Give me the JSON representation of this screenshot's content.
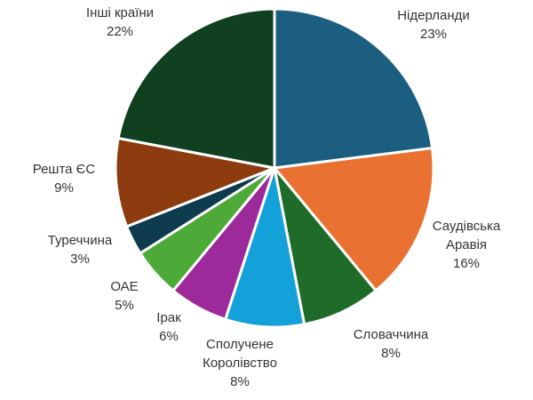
{
  "chart_data": {
    "type": "pie",
    "title": "",
    "categories": [
      "Нідерланди",
      "Саудівська Аравія",
      "Словаччина",
      "Сполучене Королівство",
      "Ірак",
      "ОАЕ",
      "Туреччина",
      "Решта ЄС",
      "Інші країни"
    ],
    "values": [
      23,
      16,
      8,
      8,
      6,
      5,
      3,
      9,
      22
    ],
    "value_labels": [
      "23%",
      "16%",
      "8%",
      "8%",
      "6%",
      "5%",
      "3%",
      "9%",
      "22%"
    ],
    "colors": [
      "#1b5e80",
      "#e97132",
      "#1e6b2a",
      "#12a1d8",
      "#9c2a9a",
      "#4daa38",
      "#0e3b4d",
      "#8c3c0e",
      "#10401f"
    ],
    "start": "12 o'clock",
    "direction": "clockwise",
    "legend": "none"
  }
}
